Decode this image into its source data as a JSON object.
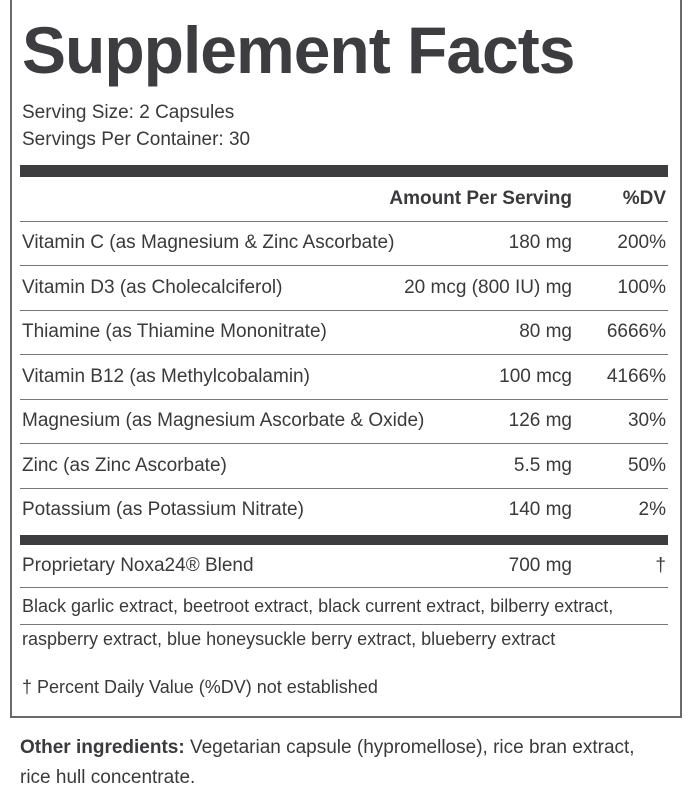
{
  "header": {
    "title": "Supplement Facts",
    "serving_size": "Serving Size: 2 Capsules",
    "servings_per_container": "Servings Per Container: 30"
  },
  "table": {
    "columns": [
      "Amount Per Serving",
      "%DV"
    ],
    "rows": [
      [
        "Vitamin C (as Magnesium & Zinc Ascorbate)",
        "180 mg",
        "200%"
      ],
      [
        "Vitamin D3 (as Cholecalciferol)",
        "20 mcg (800 IU) mg",
        "100%"
      ],
      [
        "Thiamine (as Thiamine Mononitrate)",
        "80 mg",
        "6666%"
      ],
      [
        "Vitamin B12 (as Methylcobalamin)",
        "100 mcg",
        "4166%"
      ],
      [
        "Magnesium (as Magnesium Ascorbate & Oxide)",
        "126 mg",
        "30%"
      ],
      [
        "Zinc (as Zinc Ascorbate)",
        "5.5 mg",
        "50%"
      ],
      [
        "Potassium (as Potassium Nitrate)",
        "140 mg",
        "2%"
      ]
    ],
    "blend": [
      "Proprietary Noxa24® Blend",
      "700 mg",
      "†"
    ],
    "blend_ingredients": "Black garlic extract, beetroot extract, black current extract, bilberry extract, raspberry extract, blue honeysuckle berry extract, blueberry extract",
    "footnote": "† Percent Daily Value (%DV) not established"
  },
  "other_ingredients": {
    "label": "Other ingredients:",
    "text": "Vegetarian capsule (hypromellose), rice bran extract, rice hull concentrate."
  }
}
